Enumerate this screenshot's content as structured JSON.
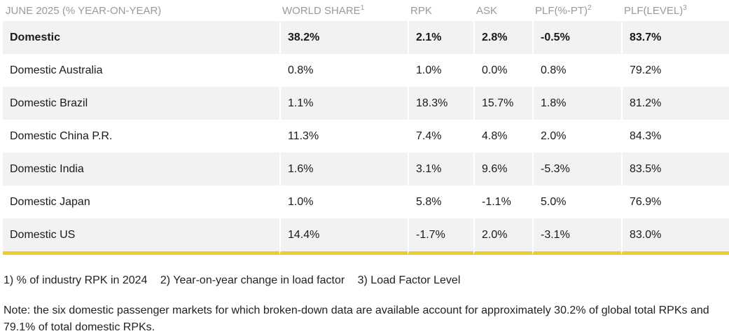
{
  "table": {
    "headers": {
      "market": "JUNE 2025 (% YEAR-ON-YEAR)",
      "world_share": "WORLD SHARE",
      "world_share_sup": "1",
      "rpk": "RPK",
      "ask": "ASK",
      "plf_pt": "PLF(%-PT)",
      "plf_pt_sup": "2",
      "plf_level": "PLF(LEVEL)",
      "plf_level_sup": "3"
    },
    "rows": [
      {
        "market": "Domestic",
        "world_share": "38.2%",
        "rpk": "2.1%",
        "ask": "2.8%",
        "plf_pt": "-0.5%",
        "plf_level": "83.7%"
      },
      {
        "market": "Domestic Australia",
        "world_share": "0.8%",
        "rpk": "1.0%",
        "ask": "0.0%",
        "plf_pt": "0.8%",
        "plf_level": "79.2%"
      },
      {
        "market": "Domestic Brazil",
        "world_share": "1.1%",
        "rpk": "18.3%",
        "ask": "15.7%",
        "plf_pt": "1.8%",
        "plf_level": "81.2%"
      },
      {
        "market": "Domestic China P.R.",
        "world_share": "11.3%",
        "rpk": "7.4%",
        "ask": "4.8%",
        "plf_pt": "2.0%",
        "plf_level": "84.3%"
      },
      {
        "market": "Domestic India",
        "world_share": "1.6%",
        "rpk": "3.1%",
        "ask": "9.6%",
        "plf_pt": "-5.3%",
        "plf_level": "83.5%"
      },
      {
        "market": "Domestic Japan",
        "world_share": "1.0%",
        "rpk": "5.8%",
        "ask": "-1.1%",
        "plf_pt": "5.0%",
        "plf_level": "76.9%"
      },
      {
        "market": "Domestic US",
        "world_share": "14.4%",
        "rpk": "-1.7%",
        "ask": "2.0%",
        "plf_pt": "-3.1%",
        "plf_level": "83.0%"
      }
    ]
  },
  "footnotes": [
    "1) % of industry RPK in 2024",
    "2) Year-on-year change in load factor",
    "3) Load Factor Level"
  ],
  "note": "Note: the six domestic passenger markets for which broken-down data are available account for approximately 30.2% of global total RPKs and 79.1% of total domestic RPKs.",
  "colors": {
    "accent_bar": "#f1cb2d",
    "row_shade": "#f2f2f2",
    "header_text": "#9a9a9a"
  }
}
